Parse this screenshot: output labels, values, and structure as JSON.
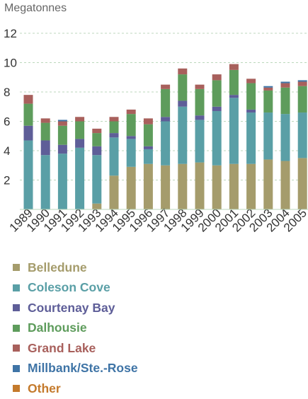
{
  "chart_data": {
    "type": "bar",
    "stacked": true,
    "ylabel": "Megatonnes",
    "ylim": [
      0,
      12
    ],
    "yticks": [
      2,
      4,
      6,
      8,
      10,
      12
    ],
    "grid": "horizontal dashed",
    "categories": [
      "1989",
      "1990",
      "1991",
      "1992",
      "1993",
      "1994",
      "1995",
      "1996",
      "1997",
      "1998",
      "1999",
      "2000",
      "2001",
      "2002",
      "2003",
      "2004",
      "2005"
    ],
    "series": [
      {
        "name": "Belledune",
        "color": "#a59c6c",
        "values": [
          0,
          0,
          0,
          0,
          0.4,
          2.3,
          2.9,
          3.1,
          3.0,
          3.1,
          3.2,
          3.0,
          3.1,
          3.1,
          3.4,
          3.3,
          3.5
        ]
      },
      {
        "name": "Coleson Cove",
        "color": "#5a9fa6",
        "values": [
          4.7,
          3.7,
          3.8,
          4.2,
          3.3,
          2.6,
          1.9,
          1.0,
          3.0,
          3.9,
          2.9,
          3.7,
          4.5,
          3.5,
          3.2,
          3.2,
          3.1
        ]
      },
      {
        "name": "Courtenay Bay",
        "color": "#5e5e98",
        "values": [
          1.0,
          1.0,
          0.6,
          0.6,
          0.6,
          0.3,
          0.2,
          0.2,
          0.3,
          0.4,
          0.3,
          0.3,
          0.2,
          0.2,
          0,
          0,
          0
        ]
      },
      {
        "name": "Dalhousie",
        "color": "#5e9c5c",
        "values": [
          1.5,
          1.2,
          1.3,
          1.2,
          0.9,
          0.8,
          1.5,
          1.5,
          1.9,
          1.8,
          1.8,
          1.8,
          1.7,
          1.8,
          1.5,
          1.8,
          1.8
        ]
      },
      {
        "name": "Grand Lake",
        "color": "#a8605c",
        "values": [
          0.6,
          0.3,
          0.3,
          0.3,
          0.3,
          0.3,
          0.3,
          0.4,
          0.3,
          0.4,
          0.3,
          0.4,
          0.4,
          0.3,
          0.2,
          0.3,
          0.3
        ]
      },
      {
        "name": "Millbank/Ste.-Rose",
        "color": "#3f74a6",
        "values": [
          0,
          0,
          0.1,
          0,
          0,
          0,
          0,
          0,
          0,
          0,
          0,
          0,
          0,
          0,
          0.1,
          0.1,
          0.1
        ]
      },
      {
        "name": "Other",
        "color": "#c47a2c",
        "values": [
          0,
          0,
          0,
          0,
          0,
          0,
          0,
          0,
          0,
          0,
          0,
          0,
          0,
          0,
          0,
          0,
          0
        ]
      }
    ]
  }
}
